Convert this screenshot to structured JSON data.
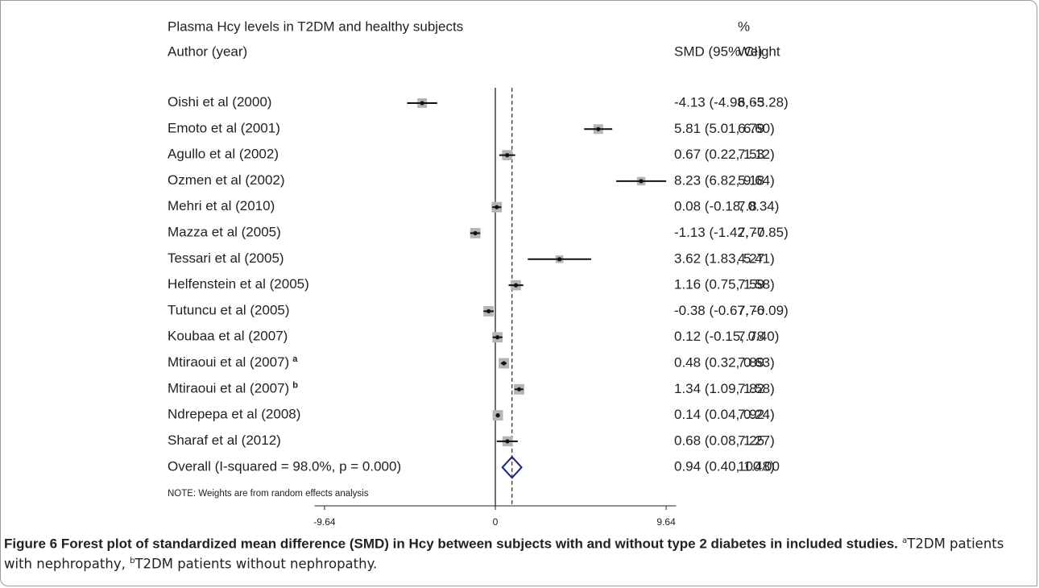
{
  "chart_data": {
    "type": "forest",
    "title": "Plasma Hcy levels in T2DM and healthy subjects",
    "label_header": "Author (year)",
    "ci_header": "SMD (95% CI)",
    "weight_header": [
      "%",
      "Weight"
    ],
    "studies": [
      {
        "name": "Oishi et al (2000)",
        "smd": -4.13,
        "lower": -4.98,
        "upper": -3.28,
        "ci_label": "-4.13 (-4.98, -3.28)",
        "weight": 6.65
      },
      {
        "name": "Emoto et al (2001)",
        "smd": 5.81,
        "lower": 5.01,
        "upper": 6.6,
        "ci_label": "5.81 (5.01, 6.60)",
        "weight": 6.79
      },
      {
        "name": "Agullo et al (2002)",
        "smd": 0.67,
        "lower": 0.22,
        "upper": 1.12,
        "ci_label": "0.67 (0.22, 1.12)",
        "weight": 7.53
      },
      {
        "name": "Ozmen et al (2002)",
        "smd": 8.23,
        "lower": 6.82,
        "upper": 9.64,
        "ci_label": "8.23 (6.82, 9.64)",
        "weight": 5.18
      },
      {
        "name": "Mehri et al (2010)",
        "smd": 0.08,
        "lower": -0.18,
        "upper": 0.34,
        "ci_label": "0.08 (-0.18, 0.34)",
        "weight": 7.8
      },
      {
        "name": "Mazza et al (2005)",
        "smd": -1.13,
        "lower": -1.42,
        "upper": -0.85,
        "ci_label": "-1.13 (-1.42, -0.85)",
        "weight": 7.77
      },
      {
        "name": "Tessari et al (2005)",
        "smd": 3.62,
        "lower": 1.83,
        "upper": 5.41,
        "ci_label": "3.62 (1.83, 5.41)",
        "weight": 4.27
      },
      {
        "name": "Helfenstein et al (2005)",
        "smd": 1.16,
        "lower": 0.75,
        "upper": 1.58,
        "ci_label": "1.16 (0.75, 1.58)",
        "weight": 7.59
      },
      {
        "name": "Tutuncu et al (2005)",
        "smd": -0.38,
        "lower": -0.67,
        "upper": -0.09,
        "ci_label": "-0.38 (-0.67, -0.09)",
        "weight": 7.76
      },
      {
        "name": "Koubaa et al (2007)",
        "smd": 0.12,
        "lower": -0.15,
        "upper": 0.4,
        "ci_label": "0.12 (-0.15, 0.40)",
        "weight": 7.78
      },
      {
        "name": "Mtiraoui et al (2007)",
        "sup": "a",
        "smd": 0.48,
        "lower": 0.32,
        "upper": 0.63,
        "ci_label": "0.48 (0.32, 0.63)",
        "weight": 7.89
      },
      {
        "name": "Mtiraoui et al (2007)",
        "sup": "b",
        "smd": 1.34,
        "lower": 1.09,
        "upper": 1.58,
        "ci_label": "1.34 (1.09, 1.58)",
        "weight": 7.82
      },
      {
        "name": "Ndrepepa et al (2008)",
        "smd": 0.14,
        "lower": 0.04,
        "upper": 0.24,
        "ci_label": "0.14 (0.04, 0.24)",
        "weight": 7.92
      },
      {
        "name": "Sharaf et al (2012)",
        "smd": 0.68,
        "lower": 0.08,
        "upper": 1.27,
        "ci_label": "0.68 (0.08, 1.27)",
        "weight": 7.25
      }
    ],
    "overall": {
      "name": "Overall  (I-squared = 98.0%, p = 0.000)",
      "smd": 0.94,
      "lower": 0.4,
      "upper": 1.48,
      "ci_label": "0.94 (0.40, 1.48)",
      "weight": 100,
      "weight_label": "100.00"
    },
    "note": "NOTE: Weights are from random effects analysis",
    "xlim": [
      -10.2,
      10.2
    ],
    "xticks": [
      -9.64,
      0,
      9.64
    ],
    "box_color": "#b5b5b5",
    "diamond_color": "#1a237e",
    "overall_line_color": "#8b1a1a"
  },
  "caption": {
    "title": "Figure 6 Forest plot of standardized mean difference (SMD) in Hcy between subjects with and without type 2 diabetes in included studies.",
    "notes": [
      {
        "sup": "a",
        "text": "T2DM patients with nephropathy, "
      },
      {
        "sup": "b",
        "text": "T2DM patients without nephropathy."
      }
    ]
  }
}
